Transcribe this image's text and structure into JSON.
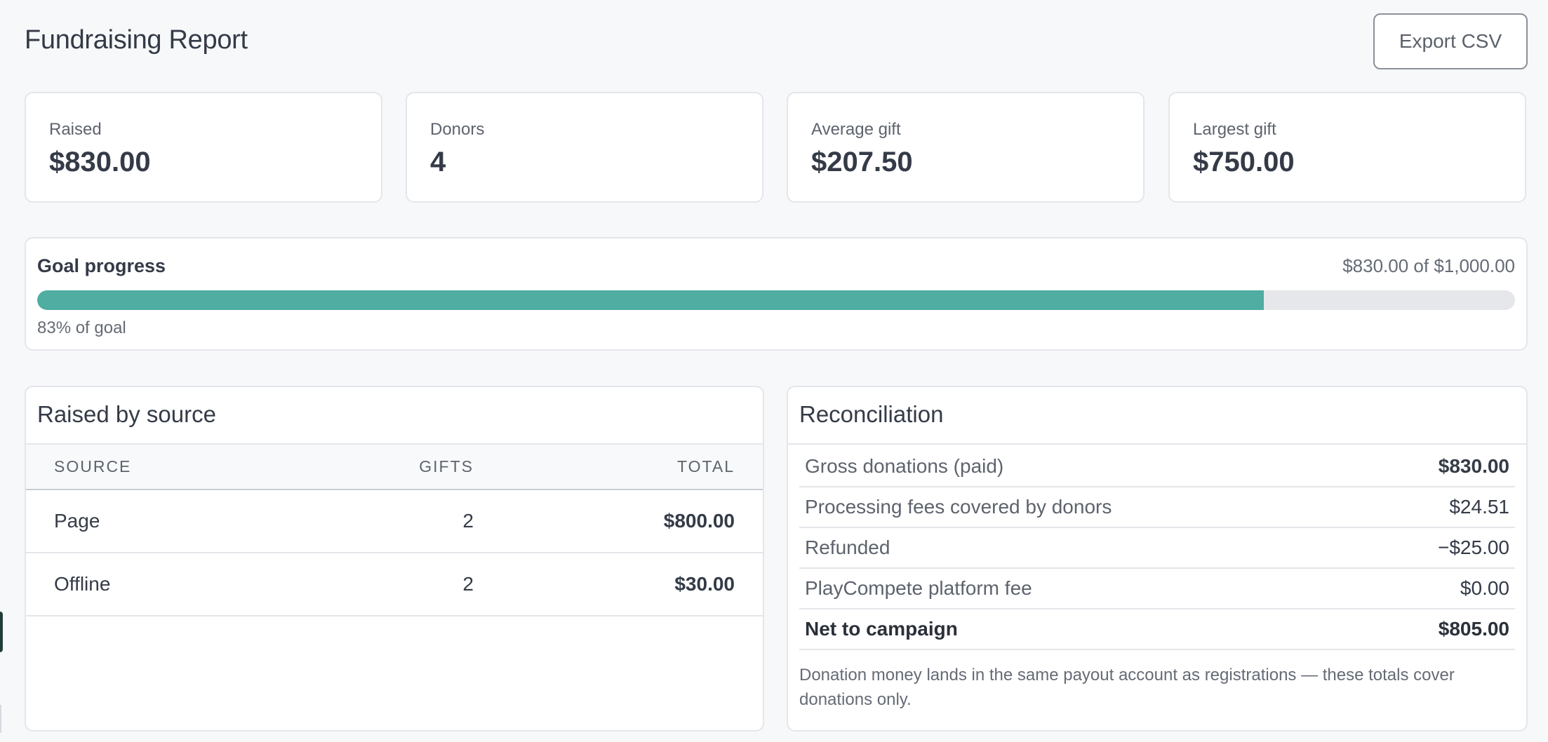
{
  "header": {
    "title": "Fundraising Report",
    "export_label": "Export CSV"
  },
  "stats": [
    {
      "label": "Raised",
      "value": "$830.00"
    },
    {
      "label": "Donors",
      "value": "4"
    },
    {
      "label": "Average gift",
      "value": "$207.50"
    },
    {
      "label": "Largest gift",
      "value": "$750.00"
    }
  ],
  "goal": {
    "title": "Goal progress",
    "amount_text": "$830.00 of $1,000.00",
    "percent_text": "83% of goal",
    "progress_fraction": 0.83,
    "fill_color": "#4fada2",
    "track_color": "#e6e7ea"
  },
  "by_source": {
    "title": "Raised by source",
    "columns": [
      "SOURCE",
      "GIFTS",
      "TOTAL"
    ],
    "rows": [
      {
        "source": "Page",
        "gifts": "2",
        "total": "$800.00"
      },
      {
        "source": "Offline",
        "gifts": "2",
        "total": "$30.00"
      }
    ]
  },
  "reconciliation": {
    "title": "Reconciliation",
    "rows": [
      {
        "label": "Gross donations (paid)",
        "amount": "$830.00"
      },
      {
        "label": "Processing fees covered by donors",
        "amount": "$24.51"
      },
      {
        "label": "Refunded",
        "amount": "−$25.00"
      },
      {
        "label": "PlayCompete platform fee",
        "amount": "$0.00"
      },
      {
        "label": "Net to campaign",
        "amount": "$805.00"
      }
    ],
    "note": "Donation money lands in the same payout account as registrations — these totals cover donations only."
  }
}
